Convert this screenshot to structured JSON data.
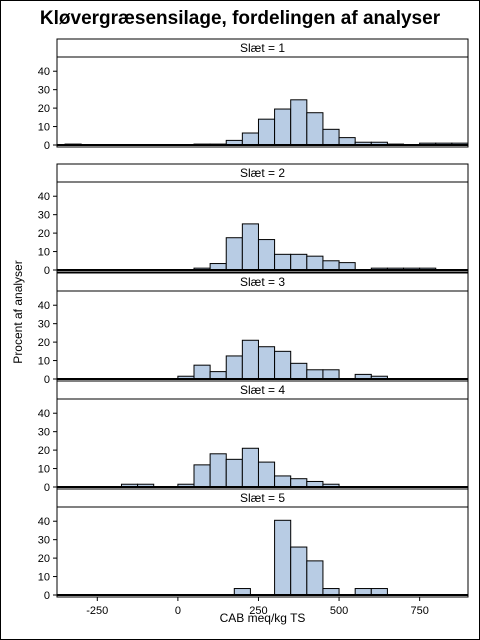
{
  "chart_data": {
    "type": "bar",
    "title": "Kløvergræsensilage, fordelingen af analyser",
    "xlabel": "CAB meq/kg TS",
    "ylabel": "Procent af analyser",
    "xlim": [
      -375,
      900
    ],
    "ylim": [
      0,
      45
    ],
    "xticks": [
      -250,
      0,
      250,
      500,
      750
    ],
    "yticks": [
      0,
      10,
      20,
      30,
      40
    ],
    "bin_width": 50,
    "bar_color": "#b8cce4",
    "panels": [
      {
        "label": "Slæt = 1",
        "bins": [
          {
            "x": -350,
            "y": 0.5
          },
          {
            "x": 50,
            "y": 0.5
          },
          {
            "x": 100,
            "y": 0.5
          },
          {
            "x": 150,
            "y": 2.5
          },
          {
            "x": 200,
            "y": 6.5
          },
          {
            "x": 250,
            "y": 14
          },
          {
            "x": 300,
            "y": 19.5
          },
          {
            "x": 350,
            "y": 24.5
          },
          {
            "x": 400,
            "y": 17.5
          },
          {
            "x": 450,
            "y": 8.5
          },
          {
            "x": 500,
            "y": 4
          },
          {
            "x": 550,
            "y": 1.5
          },
          {
            "x": 600,
            "y": 1.5
          },
          {
            "x": 650,
            "y": 0.5
          },
          {
            "x": 750,
            "y": 1
          },
          {
            "x": 800,
            "y": 1
          },
          {
            "x": 850,
            "y": 1
          }
        ]
      },
      {
        "label": "Slæt = 2",
        "bins": [
          {
            "x": 50,
            "y": 1
          },
          {
            "x": 100,
            "y": 3.5
          },
          {
            "x": 150,
            "y": 17.5
          },
          {
            "x": 200,
            "y": 25
          },
          {
            "x": 250,
            "y": 16.5
          },
          {
            "x": 300,
            "y": 8.5
          },
          {
            "x": 350,
            "y": 8.5
          },
          {
            "x": 400,
            "y": 7.5
          },
          {
            "x": 450,
            "y": 5
          },
          {
            "x": 500,
            "y": 4
          },
          {
            "x": 600,
            "y": 1
          },
          {
            "x": 650,
            "y": 1
          },
          {
            "x": 700,
            "y": 1
          },
          {
            "x": 750,
            "y": 1
          }
        ]
      },
      {
        "label": "Slæt = 3",
        "bins": [
          {
            "x": 0,
            "y": 1.5
          },
          {
            "x": 50,
            "y": 7.5
          },
          {
            "x": 100,
            "y": 4
          },
          {
            "x": 150,
            "y": 12.5
          },
          {
            "x": 200,
            "y": 21
          },
          {
            "x": 250,
            "y": 17.5
          },
          {
            "x": 300,
            "y": 15
          },
          {
            "x": 350,
            "y": 8.5
          },
          {
            "x": 400,
            "y": 5
          },
          {
            "x": 450,
            "y": 5
          },
          {
            "x": 550,
            "y": 2.5
          },
          {
            "x": 600,
            "y": 1.5
          }
        ]
      },
      {
        "label": "Slæt = 4",
        "bins": [
          {
            "x": -175,
            "y": 1.5
          },
          {
            "x": -125,
            "y": 1.5
          },
          {
            "x": 0,
            "y": 1.5
          },
          {
            "x": 50,
            "y": 12
          },
          {
            "x": 100,
            "y": 18
          },
          {
            "x": 150,
            "y": 15
          },
          {
            "x": 200,
            "y": 21
          },
          {
            "x": 250,
            "y": 13.5
          },
          {
            "x": 300,
            "y": 6
          },
          {
            "x": 350,
            "y": 4.5
          },
          {
            "x": 400,
            "y": 3
          },
          {
            "x": 450,
            "y": 1.5
          }
        ]
      },
      {
        "label": "Slæt = 5",
        "bins": [
          {
            "x": 175,
            "y": 3.5
          },
          {
            "x": 300,
            "y": 40.5
          },
          {
            "x": 350,
            "y": 26
          },
          {
            "x": 400,
            "y": 18.5
          },
          {
            "x": 450,
            "y": 3.5
          },
          {
            "x": 550,
            "y": 3.5
          },
          {
            "x": 600,
            "y": 3.5
          }
        ]
      }
    ]
  }
}
